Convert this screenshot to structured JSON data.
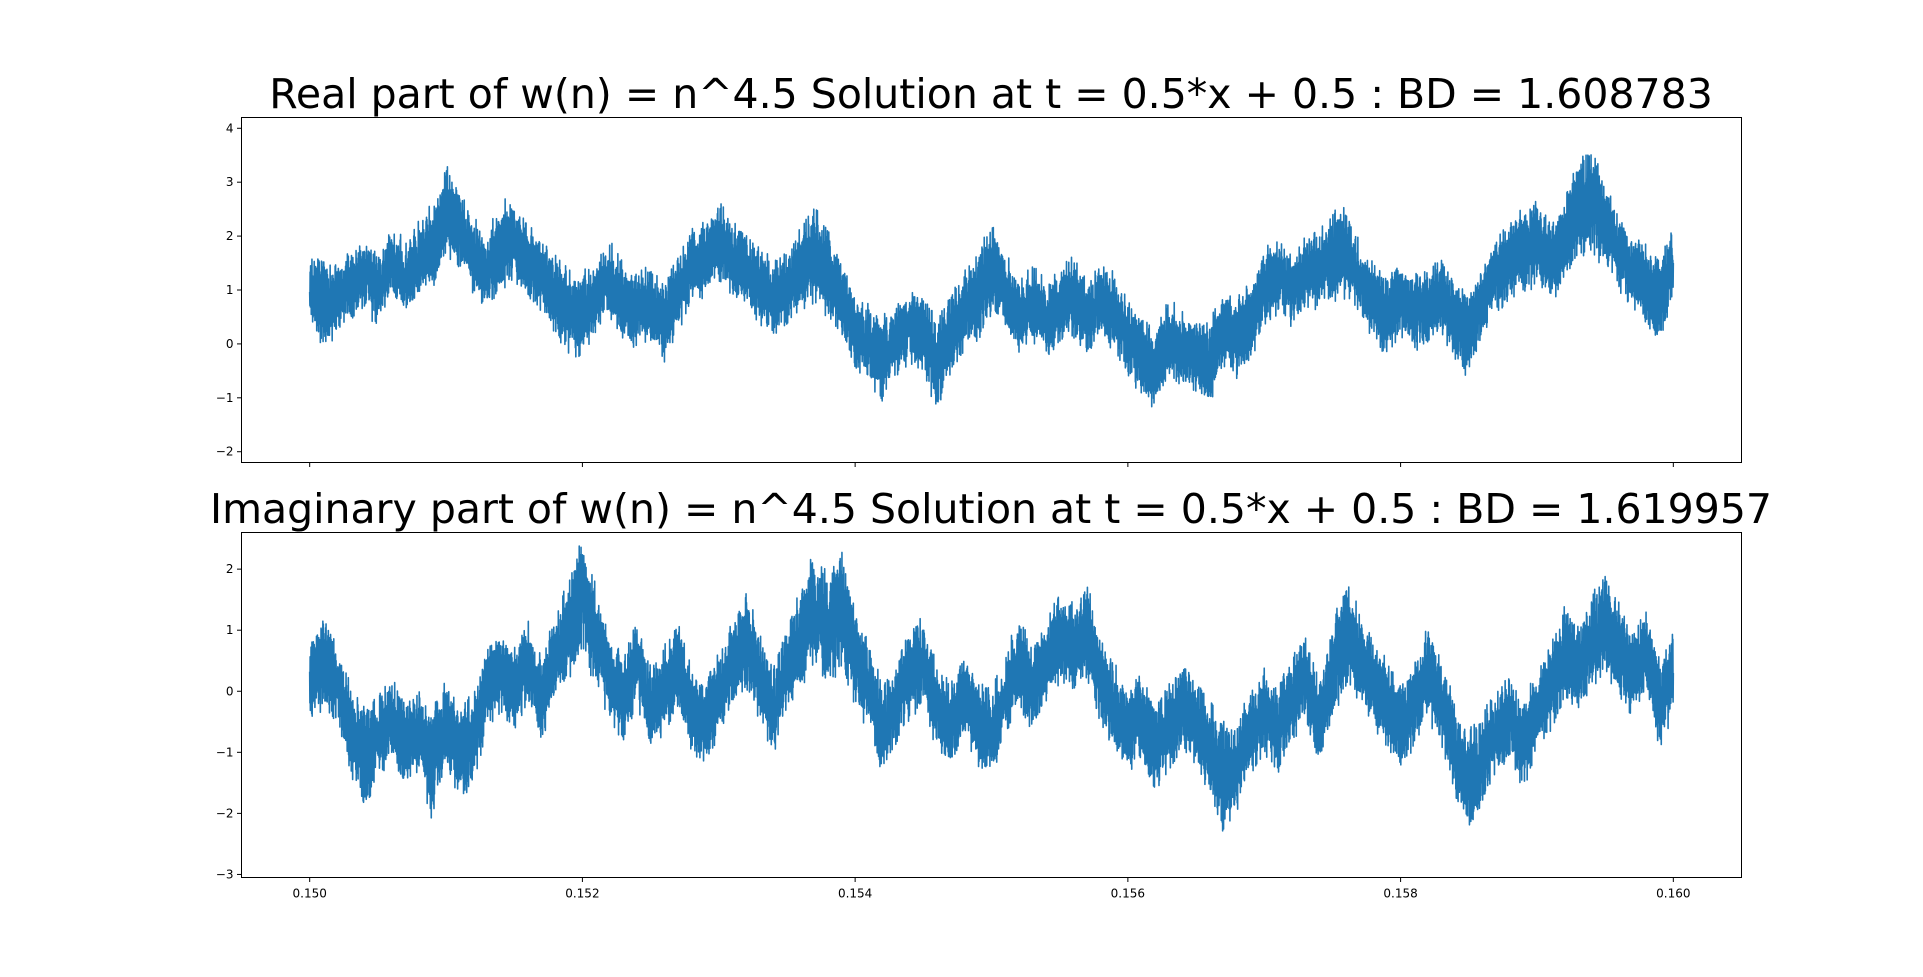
{
  "chart_data": [
    {
      "type": "line",
      "title": "Real part of w(n) = n^4.5 Solution at t = 0.5*x + 0.5 : BD = 1.608783",
      "xlabel": "",
      "ylabel": "",
      "xlim": [
        0.1495,
        0.1605
      ],
      "ylim": [
        -2.2,
        4.2
      ],
      "xticks": [
        0.15,
        0.152,
        0.154,
        0.156,
        0.158,
        0.16
      ],
      "xtick_labels": [],
      "yticks": [
        -2,
        -1,
        0,
        1,
        2,
        3,
        4
      ],
      "ytick_labels": [
        "−2",
        "−1",
        "0",
        "1",
        "2",
        "3",
        "4"
      ],
      "grid": false,
      "series": [
        {
          "color": "#1f77b4",
          "x": [
            0.15,
            0.1501,
            0.1502,
            0.1503,
            0.1504,
            0.1505,
            0.1506,
            0.1507,
            0.1508,
            0.1509,
            0.151,
            0.1511,
            0.1512,
            0.1513,
            0.1514,
            0.1515,
            0.1516,
            0.1517,
            0.1518,
            0.1519,
            0.152,
            0.1521,
            0.1522,
            0.1523,
            0.1524,
            0.1525,
            0.1526,
            0.1527,
            0.1528,
            0.1529,
            0.153,
            0.1531,
            0.1532,
            0.1533,
            0.1534,
            0.1535,
            0.1536,
            0.1537,
            0.1538,
            0.1539,
            0.154,
            0.1541,
            0.1542,
            0.1543,
            0.1544,
            0.1545,
            0.1546,
            0.1547,
            0.1548,
            0.1549,
            0.155,
            0.1551,
            0.1552,
            0.1553,
            0.1554,
            0.1555,
            0.1556,
            0.1557,
            0.1558,
            0.1559,
            0.156,
            0.1561,
            0.1562,
            0.1563,
            0.1564,
            0.1565,
            0.1566,
            0.1567,
            0.1568,
            0.1569,
            0.157,
            0.1571,
            0.1572,
            0.1573,
            0.1574,
            0.1575,
            0.1576,
            0.1577,
            0.1578,
            0.1579,
            0.158,
            0.1581,
            0.1582,
            0.1583,
            0.1584,
            0.1585,
            0.1586,
            0.1587,
            0.1588,
            0.1589,
            0.159,
            0.1591,
            0.1592,
            0.1593,
            0.1594,
            0.1595,
            0.1596,
            0.1597,
            0.1598,
            0.1599,
            0.16
          ],
          "y_center": [
            1.0,
            0.8,
            0.9,
            1.1,
            1.3,
            1.0,
            1.5,
            1.2,
            1.6,
            1.9,
            2.4,
            2.2,
            1.6,
            1.3,
            1.8,
            1.9,
            1.5,
            1.3,
            0.9,
            0.6,
            0.5,
            0.9,
            1.2,
            0.8,
            0.6,
            0.8,
            0.4,
            1.0,
            1.4,
            1.6,
            1.9,
            1.5,
            1.4,
            1.1,
            0.8,
            1.0,
            1.4,
            1.7,
            1.3,
            0.9,
            0.2,
            0.0,
            -0.3,
            0.1,
            0.3,
            0.2,
            -0.4,
            0.2,
            0.6,
            0.9,
            1.4,
            1.0,
            0.5,
            0.8,
            0.4,
            0.7,
            0.9,
            0.5,
            0.8,
            0.6,
            0.1,
            -0.2,
            -0.5,
            0.1,
            -0.1,
            -0.2,
            -0.4,
            0.3,
            0.1,
            0.4,
            1.0,
            1.3,
            1.0,
            1.3,
            1.4,
            1.6,
            1.7,
            1.2,
            0.8,
            0.5,
            0.9,
            0.6,
            0.7,
            0.9,
            0.4,
            0.2,
            0.8,
            1.3,
            1.5,
            1.7,
            1.9,
            1.5,
            1.9,
            2.5,
            2.7,
            2.2,
            1.7,
            1.4,
            1.1,
            0.8,
            1.5
          ],
          "y_amplitude": [
            0.5,
            0.8,
            0.6,
            0.5,
            0.5,
            0.6,
            0.5,
            0.6,
            0.6,
            0.7,
            0.8,
            0.7,
            0.6,
            0.6,
            0.7,
            0.7,
            0.6,
            0.6,
            0.7,
            0.7,
            0.7,
            0.6,
            0.6,
            0.6,
            0.6,
            0.6,
            0.6,
            0.6,
            0.6,
            0.6,
            0.7,
            0.6,
            0.6,
            0.6,
            0.6,
            0.6,
            0.7,
            0.8,
            0.7,
            0.6,
            0.6,
            0.6,
            0.7,
            0.6,
            0.6,
            0.6,
            0.8,
            0.6,
            0.6,
            0.7,
            0.8,
            0.6,
            0.6,
            0.6,
            0.6,
            0.6,
            0.7,
            0.6,
            0.6,
            0.6,
            0.6,
            0.6,
            0.7,
            0.6,
            0.6,
            0.6,
            0.7,
            0.6,
            0.6,
            0.6,
            0.6,
            0.6,
            0.6,
            0.6,
            0.6,
            0.7,
            0.7,
            0.6,
            0.6,
            0.6,
            0.6,
            0.6,
            0.6,
            0.6,
            0.6,
            0.7,
            0.6,
            0.6,
            0.6,
            0.7,
            0.7,
            0.6,
            0.7,
            0.8,
            0.9,
            0.7,
            0.6,
            0.6,
            0.7,
            0.7,
            0.6
          ]
        }
      ]
    },
    {
      "type": "line",
      "title": "Imaginary part of w(n) = n^4.5 Solution at t = 0.5*x + 0.5 : BD = 1.619957",
      "xlabel": "",
      "ylabel": "",
      "xlim": [
        0.1495,
        0.1605
      ],
      "ylim": [
        -3.05,
        2.6
      ],
      "xticks": [
        0.15,
        0.152,
        0.154,
        0.156,
        0.158,
        0.16
      ],
      "xtick_labels": [
        "0.150",
        "0.152",
        "0.154",
        "0.156",
        "0.158",
        "0.160"
      ],
      "yticks": [
        -3,
        -2,
        -1,
        0,
        1,
        2
      ],
      "ytick_labels": [
        "−3",
        "−2",
        "−1",
        "0",
        "1",
        "2"
      ],
      "grid": false,
      "series": [
        {
          "color": "#1f77b4",
          "x": [
            0.15,
            0.1501,
            0.1502,
            0.1503,
            0.1504,
            0.1505,
            0.1506,
            0.1507,
            0.1508,
            0.1509,
            0.151,
            0.1511,
            0.1512,
            0.1513,
            0.1514,
            0.1515,
            0.1516,
            0.1517,
            0.1518,
            0.1519,
            0.152,
            0.1521,
            0.1522,
            0.1523,
            0.1524,
            0.1525,
            0.1526,
            0.1527,
            0.1528,
            0.1529,
            0.153,
            0.1531,
            0.1532,
            0.1533,
            0.1534,
            0.1535,
            0.1536,
            0.1537,
            0.1538,
            0.1539,
            0.154,
            0.1541,
            0.1542,
            0.1543,
            0.1544,
            0.1545,
            0.1546,
            0.1547,
            0.1548,
            0.1549,
            0.155,
            0.1551,
            0.1552,
            0.1553,
            0.1554,
            0.1555,
            0.1556,
            0.1557,
            0.1558,
            0.1559,
            0.156,
            0.1561,
            0.1562,
            0.1563,
            0.1564,
            0.1565,
            0.1566,
            0.1567,
            0.1568,
            0.1569,
            0.157,
            0.1571,
            0.1572,
            0.1573,
            0.1574,
            0.1575,
            0.1576,
            0.1577,
            0.1578,
            0.1579,
            0.158,
            0.1581,
            0.1582,
            0.1583,
            0.1584,
            0.1585,
            0.1586,
            0.1587,
            0.1588,
            0.1589,
            0.159,
            0.1591,
            0.1592,
            0.1593,
            0.1594,
            0.1595,
            0.1596,
            0.1597,
            0.1598,
            0.1599,
            0.16
          ],
          "y_center": [
            0.2,
            0.5,
            0.1,
            -0.6,
            -1.1,
            -0.8,
            -0.5,
            -0.9,
            -0.7,
            -1.2,
            -0.5,
            -1.0,
            -0.8,
            0.1,
            0.3,
            0.0,
            0.5,
            -0.2,
            0.6,
            1.0,
            1.6,
            0.9,
            0.2,
            -0.1,
            0.5,
            -0.3,
            0.0,
            0.4,
            -0.3,
            -0.5,
            0.0,
            0.4,
            0.9,
            0.2,
            -0.3,
            0.4,
            0.8,
            1.4,
            1.0,
            1.3,
            0.6,
            0.0,
            -0.6,
            -0.2,
            0.3,
            0.5,
            -0.3,
            -0.6,
            0.0,
            -0.5,
            -0.7,
            -0.1,
            0.5,
            0.1,
            0.4,
            0.9,
            0.7,
            1.0,
            0.2,
            -0.3,
            -0.6,
            -0.4,
            -0.9,
            -0.6,
            -0.2,
            -0.5,
            -1.0,
            -1.4,
            -1.2,
            -0.7,
            -0.3,
            -0.6,
            -0.1,
            0.2,
            -0.5,
            0.3,
            1.0,
            0.6,
            0.1,
            -0.2,
            -0.6,
            -0.2,
            0.3,
            -0.2,
            -1.0,
            -1.5,
            -1.2,
            -0.7,
            -0.4,
            -0.9,
            -0.3,
            0.1,
            0.6,
            0.3,
            0.8,
            1.1,
            0.7,
            0.3,
            0.6,
            -0.2,
            0.3
          ],
          "y_amplitude": [
            0.6,
            0.7,
            0.6,
            0.6,
            0.7,
            0.6,
            0.6,
            0.6,
            0.6,
            0.8,
            0.6,
            0.7,
            0.6,
            0.6,
            0.6,
            0.6,
            0.6,
            0.6,
            0.6,
            0.7,
            0.9,
            0.7,
            0.6,
            0.6,
            0.6,
            0.6,
            0.6,
            0.6,
            0.6,
            0.6,
            0.6,
            0.6,
            0.7,
            0.6,
            0.6,
            0.6,
            0.7,
            0.9,
            0.8,
            0.9,
            0.7,
            0.6,
            0.6,
            0.6,
            0.6,
            0.6,
            0.6,
            0.6,
            0.6,
            0.6,
            0.6,
            0.6,
            0.6,
            0.6,
            0.6,
            0.7,
            0.6,
            0.7,
            0.6,
            0.6,
            0.6,
            0.6,
            0.7,
            0.6,
            0.6,
            0.6,
            0.7,
            0.9,
            0.7,
            0.6,
            0.6,
            0.6,
            0.6,
            0.6,
            0.6,
            0.7,
            0.8,
            0.6,
            0.6,
            0.6,
            0.6,
            0.6,
            0.6,
            0.6,
            0.7,
            0.8,
            0.7,
            0.6,
            0.6,
            0.6,
            0.6,
            0.6,
            0.7,
            0.6,
            0.7,
            0.8,
            0.7,
            0.6,
            0.6,
            0.6,
            0.6
          ]
        }
      ]
    }
  ]
}
